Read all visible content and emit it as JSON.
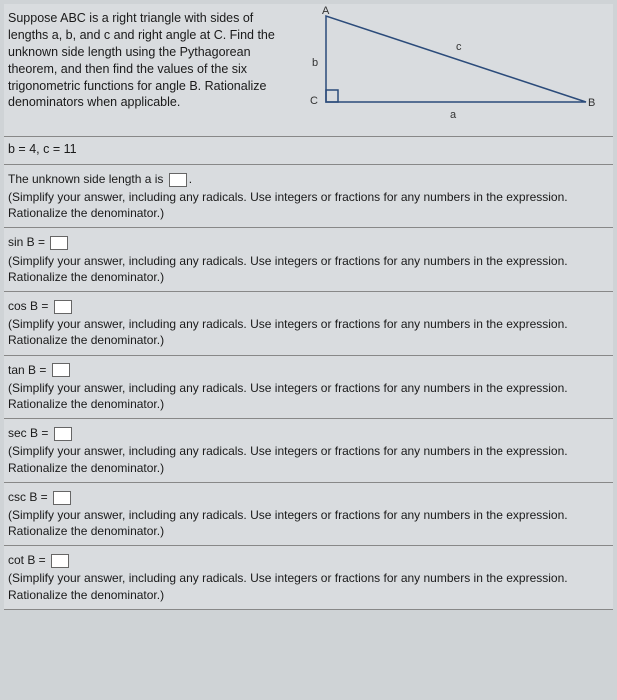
{
  "problem": {
    "statement": "Suppose ABC is a right triangle with sides of lengths a, b, and c and right angle at C. Find the unknown side length using the Pythagorean theorem, and then find the values of the six trigonometric functions for angle B. Rationalize denominators when applicable.",
    "given": "b = 4, c = 11"
  },
  "figure": {
    "labels": {
      "A": "A",
      "B": "B",
      "C": "C",
      "a": "a",
      "b": "b",
      "c": "c"
    },
    "vertices": {
      "A": [
        40,
        6
      ],
      "C": [
        40,
        92
      ],
      "B": [
        300,
        92
      ]
    },
    "right_angle_box": [
      40,
      80,
      12,
      12
    ],
    "stroke": "#2b4b7a",
    "stroke_width": 1.5
  },
  "answers": [
    {
      "prefix": "The unknown side length a is ",
      "suffix": ".",
      "instr": "(Simplify your answer, including any radicals. Use integers or fractions for any numbers in the expression. Rationalize the denominator.)"
    },
    {
      "prefix": "sin B = ",
      "suffix": "",
      "instr": "(Simplify your answer, including any radicals. Use integers or fractions for any numbers in the expression. Rationalize the denominator.)"
    },
    {
      "prefix": "cos B = ",
      "suffix": "",
      "instr": "(Simplify your answer, including any radicals. Use integers or fractions for any numbers in the expression. Rationalize the denominator.)"
    },
    {
      "prefix": "tan B = ",
      "suffix": "",
      "instr": "(Simplify your answer, including any radicals. Use integers or fractions for any numbers in the expression. Rationalize the denominator.)"
    },
    {
      "prefix": "sec B = ",
      "suffix": "",
      "instr": "(Simplify your answer, including any radicals. Use integers or fractions for any numbers in the expression. Rationalize the denominator.)"
    },
    {
      "prefix": "csc B = ",
      "suffix": "",
      "instr": "(Simplify your answer, including any radicals. Use integers or fractions for any numbers in the expression. Rationalize the denominator.)"
    },
    {
      "prefix": "cot B = ",
      "suffix": "",
      "instr": "(Simplify your answer, including any radicals. Use integers or fractions for any numbers in the expression. Rationalize the denominator.)"
    }
  ]
}
